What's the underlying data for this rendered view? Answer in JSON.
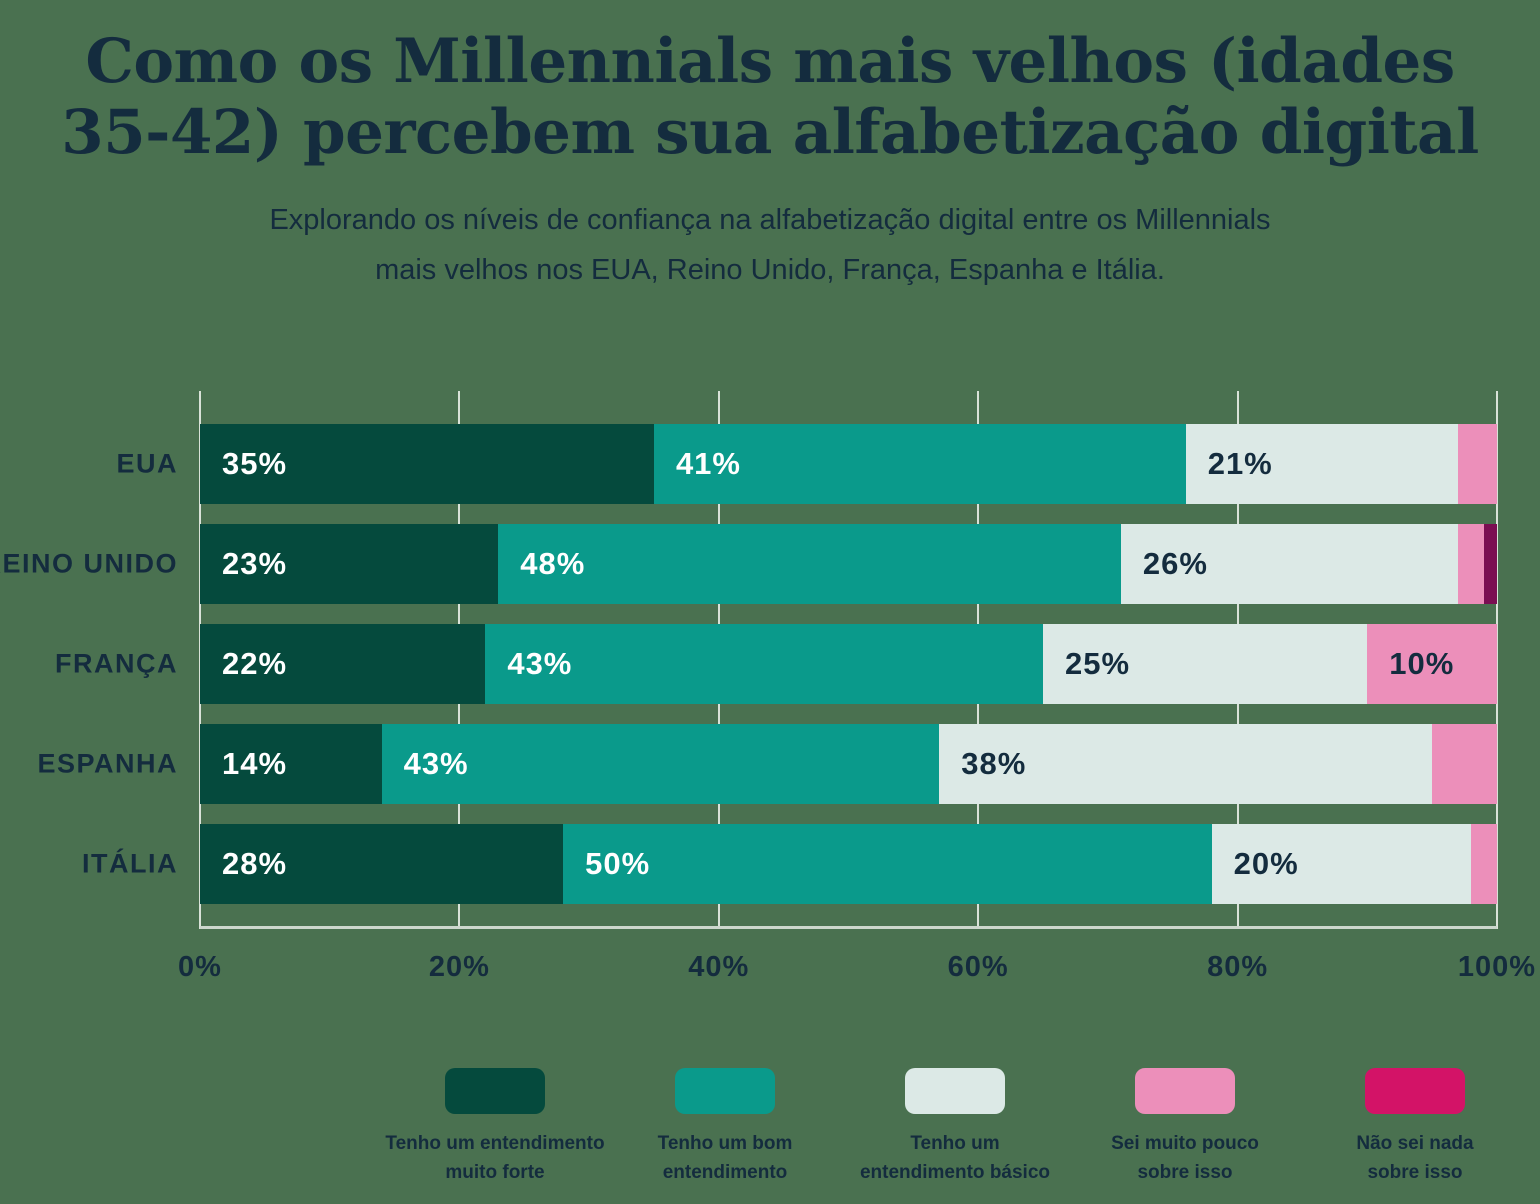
{
  "title": "Como os Millennials mais velhos (idades 35-42) percebem sua alfabetização digital",
  "subtitle": "Explorando os níveis de confiança na alfabetização digital entre os Millennials mais velhos nos EUA, Reino Unido, França, Espanha e Itália.",
  "colors": {
    "background": "#4a7150",
    "text": "#142c3e",
    "gridline": "#f2f6f0",
    "axis_line": "#ccd7cd"
  },
  "chart_data": {
    "type": "bar",
    "orientation": "horizontal",
    "stacked": true,
    "unit": "%",
    "title": "Como os Millennials mais velhos (idades 35-42) percebem sua alfabetização digital",
    "categories": [
      "EUA",
      "REINO UNIDO",
      "FRANÇA",
      "ESPANHA",
      "ITÁLIA"
    ],
    "series": [
      {
        "name": "Tenho um entendimento muito forte",
        "color": "#054a3d",
        "label_color": "#ffffff",
        "legend_color": "#054a3d",
        "values": [
          35,
          23,
          22,
          14,
          28
        ]
      },
      {
        "name": "Tenho um bom entendimento",
        "color": "#0a9a8b",
        "label_color": "#ffffff",
        "legend_color": "#0a9a8b",
        "values": [
          41,
          48,
          43,
          43,
          50
        ]
      },
      {
        "name": "Tenho um entendimento básico",
        "color": "#dce9e6",
        "label_color": "#142c3e",
        "legend_color": "#dce9e6",
        "values": [
          21,
          26,
          25,
          38,
          20
        ]
      },
      {
        "name": "Sei muito pouco sobre isso",
        "color": "#ec8fba",
        "label_color": "#142c3e",
        "legend_color": "#ec8fba",
        "values": [
          3,
          2,
          10,
          5,
          2
        ]
      },
      {
        "name": "Não sei nada sobre isso",
        "color": "#7b0e52",
        "label_color": "#ffffff",
        "legend_color": "#d31367",
        "values": [
          0,
          1,
          0,
          0,
          0
        ]
      }
    ],
    "x_ticks": [
      "0%",
      "20%",
      "40%",
      "60%",
      "80%",
      "100%"
    ],
    "xlim": [
      0,
      100
    ],
    "grid": true,
    "data_label_min_value_shown": 10,
    "legend_position": "bottom"
  },
  "legend": {
    "items": [
      {
        "lines": [
          "Tenho um entendimento",
          "muito forte"
        ]
      },
      {
        "lines": [
          "Tenho um bom",
          "entendimento"
        ]
      },
      {
        "lines": [
          "Tenho um",
          "entendimento básico"
        ]
      },
      {
        "lines": [
          "Sei muito pouco",
          "sobre isso"
        ]
      },
      {
        "lines": [
          "Não sei nada",
          "sobre isso"
        ]
      }
    ]
  }
}
